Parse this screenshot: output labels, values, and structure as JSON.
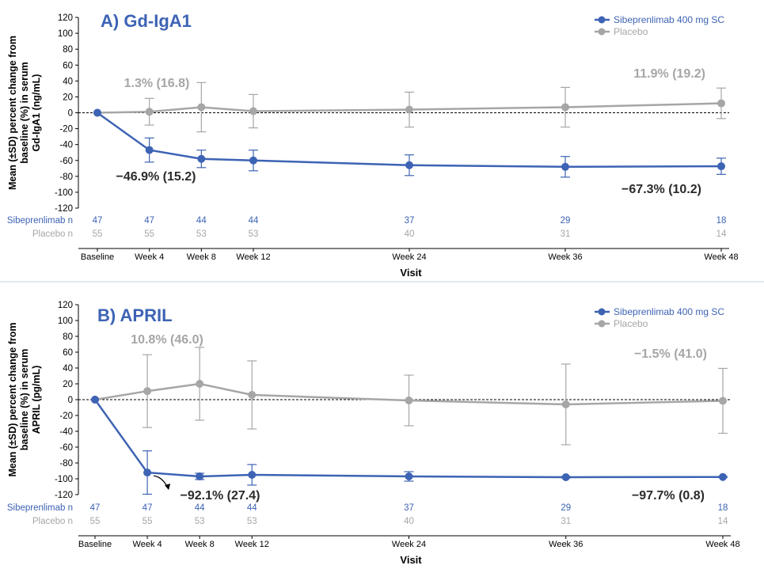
{
  "colors": {
    "sibeprenlimab": "#3d63b4",
    "placebo": "#a6a6a6",
    "axis": "#000000",
    "divider": "#c7d3e6"
  },
  "chart_data": [
    {
      "type": "line",
      "title": "A) Gd-IgA1",
      "ylabel_lines": [
        "Mean (±SD) percent change from",
        "baseline (%) in serum",
        "Gd-IgA1 (ng/mL)"
      ],
      "xlabel": "Visit",
      "x_categories": [
        "Baseline",
        "Week 4",
        "Week 8",
        "Week 12",
        "Week 24",
        "Week 36",
        "Week 48"
      ],
      "x_weeks": [
        0,
        4,
        8,
        12,
        24,
        36,
        48
      ],
      "ylim": [
        -120,
        120
      ],
      "yticks": [
        120,
        100,
        80,
        60,
        40,
        20,
        0,
        -20,
        -40,
        -60,
        -80,
        -100,
        -120
      ],
      "legend_position": "top-right",
      "series": [
        {
          "name": "Sibeprenlimab 400 mg SC",
          "key": "sibeprenlimab",
          "values": [
            0,
            -46.9,
            -58,
            -60,
            -66,
            -68,
            -67.3
          ],
          "sd": [
            0,
            15.2,
            11,
            13,
            13,
            13,
            10.2
          ]
        },
        {
          "name": "Placebo",
          "key": "placebo",
          "values": [
            0,
            1.3,
            7,
            2,
            4,
            7,
            11.9
          ],
          "sd": [
            0,
            16.8,
            31,
            21,
            22,
            25,
            19.2
          ]
        }
      ],
      "n_rows": [
        {
          "label": "Sibeprenlimab n",
          "key": "sibeprenlimab",
          "values": [
            "47",
            "47",
            "44",
            "44",
            "37",
            "29",
            "18"
          ]
        },
        {
          "label": "Placebo n",
          "key": "placebo",
          "values": [
            "55",
            "55",
            "53",
            "53",
            "40",
            "31",
            "14"
          ]
        }
      ],
      "annotations": [
        {
          "text": "1.3% (16.8)",
          "key": "placebo"
        },
        {
          "text": "−46.9% (15.2)",
          "key": "dark"
        },
        {
          "text": "11.9% (19.2)",
          "key": "placebo"
        },
        {
          "text": "−67.3% (10.2)",
          "key": "dark"
        }
      ]
    },
    {
      "type": "line",
      "title": "B) APRIL",
      "ylabel_lines": [
        "Mean (±SD) percent change from",
        "baseline (%) in serum",
        "APRIL (pg/mL)"
      ],
      "xlabel": "Visit",
      "x_categories": [
        "Baseline",
        "Week 4",
        "Week 8",
        "Week 12",
        "Week 24",
        "Week 36",
        "Week 48"
      ],
      "x_weeks": [
        0,
        4,
        8,
        12,
        24,
        36,
        48
      ],
      "ylim": [
        -120,
        120
      ],
      "yticks": [
        120,
        100,
        80,
        60,
        40,
        20,
        0,
        -20,
        -40,
        -60,
        -80,
        -100,
        -120
      ],
      "legend_position": "top-right",
      "series": [
        {
          "name": "Sibeprenlimab 400 mg SC",
          "key": "sibeprenlimab",
          "values": [
            0,
            -92.1,
            -97,
            -95,
            -97,
            -98,
            -97.7
          ],
          "sd": [
            0,
            27.4,
            4,
            13,
            6,
            1,
            0.8
          ]
        },
        {
          "name": "Placebo",
          "key": "placebo",
          "values": [
            0,
            10.8,
            20,
            6,
            -1,
            -6,
            -1.5
          ],
          "sd": [
            0,
            46.0,
            46,
            43,
            32,
            51,
            41.0
          ]
        }
      ],
      "n_rows": [
        {
          "label": "Sibeprenlimab n",
          "key": "sibeprenlimab",
          "values": [
            "47",
            "47",
            "44",
            "44",
            "37",
            "29",
            "18"
          ]
        },
        {
          "label": "Placebo n",
          "key": "placebo",
          "values": [
            "55",
            "55",
            "53",
            "53",
            "40",
            "31",
            "14"
          ]
        }
      ],
      "annotations": [
        {
          "text": "10.8% (46.0)",
          "key": "placebo"
        },
        {
          "text": "−92.1% (27.4)",
          "key": "dark"
        },
        {
          "text": "−1.5% (41.0)",
          "key": "placebo"
        },
        {
          "text": "−97.7% (0.8)",
          "key": "dark"
        }
      ]
    }
  ]
}
